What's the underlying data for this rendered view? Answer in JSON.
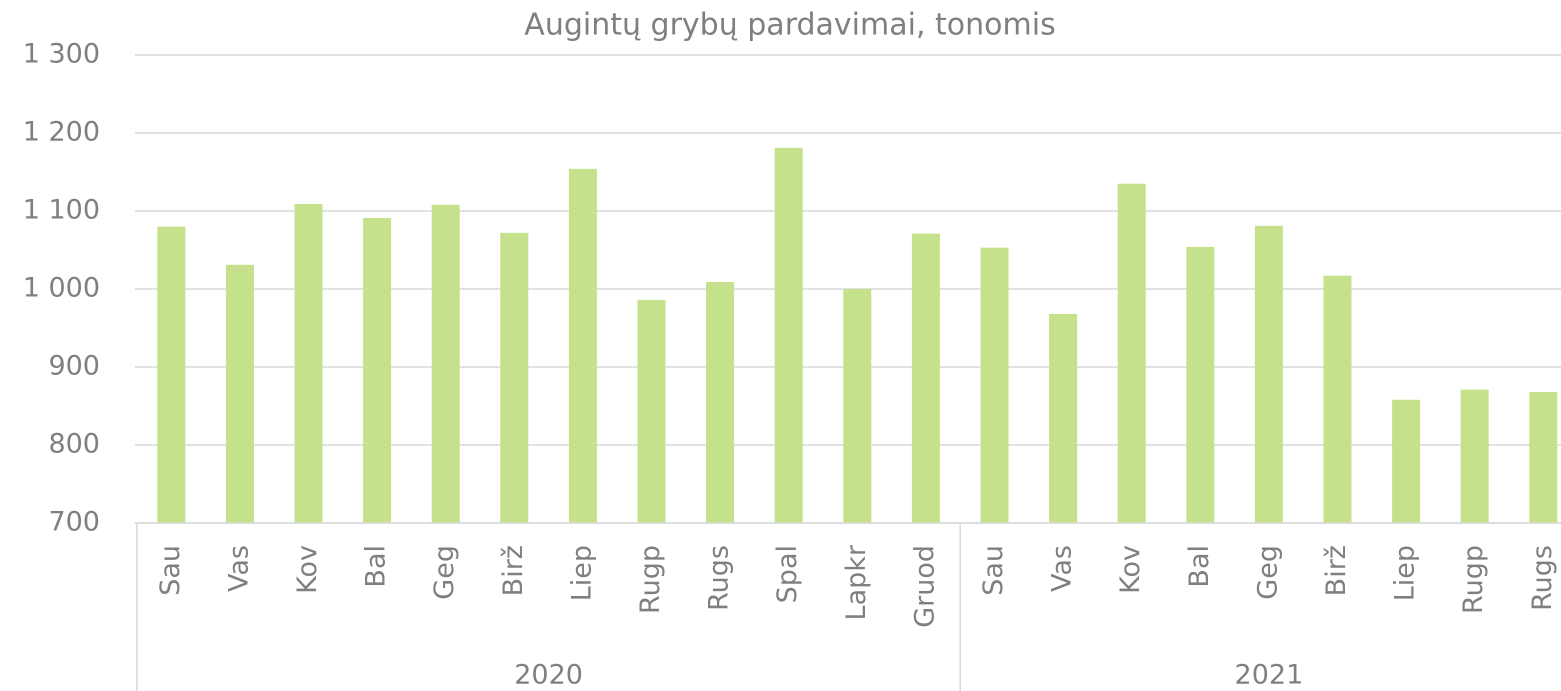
{
  "chart_data": {
    "type": "bar",
    "title": "Augintų grybų pardavimai, tonomis",
    "color": "#c5e18b",
    "grid": true,
    "ylim": [
      700,
      1300
    ],
    "yticks": [
      700,
      800,
      900,
      {
        "value": 1000,
        "label": "1 000"
      },
      {
        "value": 1100,
        "label": "1 100"
      },
      {
        "value": 1200,
        "label": "1 200"
      },
      {
        "value": 1300,
        "label": "1 300"
      }
    ],
    "groups": [
      {
        "label": "2020",
        "categories": [
          "Sau",
          "Vas",
          "Kov",
          "Bal",
          "Geg",
          "Birž",
          "Liep",
          "Rugp",
          "Rugs",
          "Spal",
          "Lapkr",
          "Gruod"
        ],
        "values": [
          1080,
          1031,
          1109,
          1091,
          1108,
          1072,
          1154,
          986,
          1009,
          1181,
          1000,
          1071
        ]
      },
      {
        "label": "2021",
        "categories": [
          "Sau",
          "Vas",
          "Kov",
          "Bal",
          "Geg",
          "Birž",
          "Liep",
          "Rugp",
          "Rugs"
        ],
        "values": [
          1053,
          968,
          1135,
          1054,
          1081,
          1017,
          858,
          871,
          868
        ]
      }
    ]
  }
}
